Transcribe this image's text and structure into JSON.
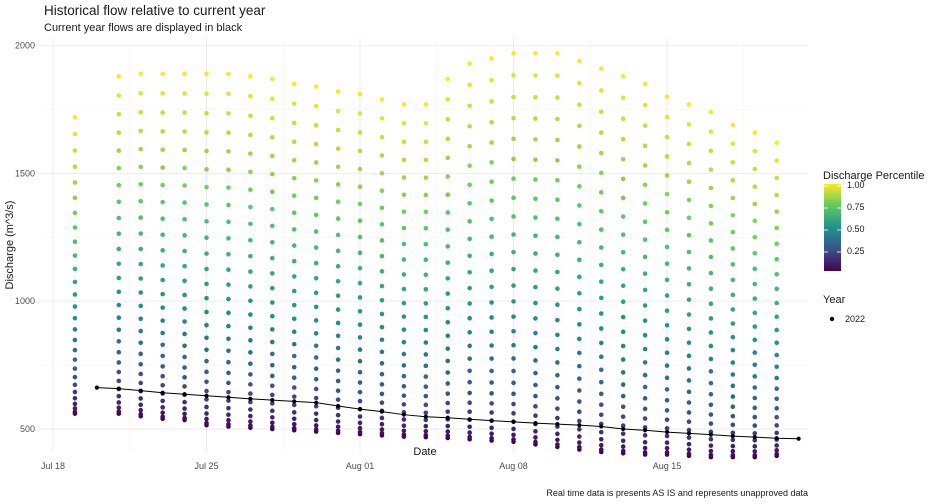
{
  "header": {
    "title": "Historical flow relative to current year",
    "subtitle": "Current year flows are displayed in black",
    "caption": "Real time data is presents AS IS and represents unapproved data"
  },
  "legend": {
    "color_title": "Discharge Percentile",
    "color_ticks": [
      "1.00",
      "0.75",
      "0.50",
      "0.25"
    ],
    "year_title": "Year",
    "year_entry": "2022"
  },
  "colors": {
    "current_year": "#000000",
    "viridis": [
      "#440154",
      "#3b528b",
      "#21918c",
      "#5ec962",
      "#fde725"
    ]
  },
  "chart_data": {
    "type": "scatter",
    "title": "Historical flow relative to current year",
    "subtitle": "Current year flows are displayed in black",
    "xlabel": "Date",
    "ylabel": "Discharge (m^3/s)",
    "x_ticks": [
      "Jul 18",
      "Jul 25",
      "Aug 01",
      "Aug 08",
      "Aug 15"
    ],
    "y_ticks": [
      500,
      1000,
      1500,
      2000
    ],
    "xlim": [
      "2022-07-17",
      "2022-08-24"
    ],
    "ylim": [
      410,
      2030
    ],
    "grid": true,
    "legend_position": "right",
    "dates": [
      "Jul 19",
      "Jul 21",
      "Jul 22",
      "Jul 23",
      "Jul 24",
      "Jul 25",
      "Jul 26",
      "Jul 27",
      "Jul 28",
      "Jul 29",
      "Jul 30",
      "Jul 31",
      "Aug 01",
      "Aug 02",
      "Aug 03",
      "Aug 04",
      "Aug 05",
      "Aug 06",
      "Aug 07",
      "Aug 08",
      "Aug 09",
      "Aug 10",
      "Aug 11",
      "Aug 12",
      "Aug 13",
      "Aug 14",
      "Aug 15",
      "Aug 16",
      "Aug 17",
      "Aug 18",
      "Aug 19",
      "Aug 20"
    ],
    "historical_max": [
      1720,
      1880,
      1890,
      1890,
      1890,
      1890,
      1890,
      1880,
      1870,
      1850,
      1840,
      1820,
      1810,
      1790,
      1770,
      1770,
      1870,
      1930,
      1950,
      1970,
      1970,
      1970,
      1940,
      1910,
      1880,
      1850,
      1800,
      1770,
      1740,
      1690,
      1660,
      1620
    ],
    "historical_min": [
      560,
      560,
      550,
      540,
      535,
      515,
      510,
      505,
      500,
      495,
      490,
      485,
      480,
      475,
      470,
      468,
      465,
      460,
      455,
      450,
      440,
      430,
      420,
      410,
      405,
      400,
      400,
      395,
      390,
      390,
      390,
      395
    ],
    "series": [
      {
        "name": "2022",
        "x": [
          "Jul 20",
          "Jul 21",
          "Jul 22",
          "Jul 23",
          "Jul 24",
          "Jul 25",
          "Jul 26",
          "Jul 27",
          "Jul 28",
          "Jul 29",
          "Jul 30",
          "Jul 31",
          "Aug 01",
          "Aug 02",
          "Aug 03",
          "Aug 04",
          "Aug 05",
          "Aug 06",
          "Aug 07",
          "Aug 08",
          "Aug 09",
          "Aug 10",
          "Aug 11",
          "Aug 12",
          "Aug 13",
          "Aug 14",
          "Aug 15",
          "Aug 16",
          "Aug 17",
          "Aug 18",
          "Aug 19",
          "Aug 20",
          "Aug 21"
        ],
        "values": [
          662,
          658,
          650,
          642,
          636,
          630,
          624,
          618,
          613,
          608,
          603,
          590,
          578,
          568,
          556,
          548,
          544,
          538,
          533,
          528,
          523,
          519,
          515,
          510,
          500,
          495,
          488,
          483,
          478,
          472,
          468,
          464,
          462
        ]
      }
    ]
  }
}
